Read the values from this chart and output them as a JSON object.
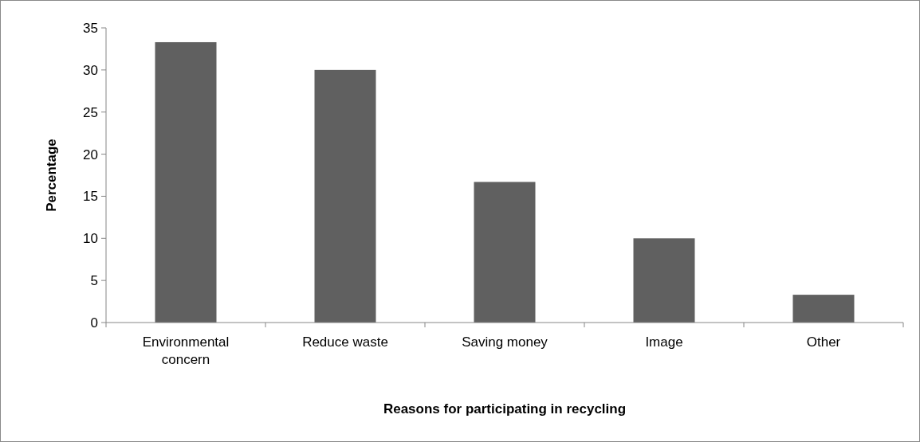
{
  "chart_data": {
    "type": "bar",
    "xlabel": "Reasons for participating in recycling",
    "ylabel": "Percentage",
    "categories": [
      "Environmental concern",
      "Reduce waste",
      "Saving money",
      "Image",
      "Other"
    ],
    "values": [
      33.3,
      30,
      16.7,
      10,
      3.3
    ],
    "color": "#606060",
    "ylim": [
      0,
      35
    ],
    "yticks": [
      0,
      5,
      10,
      15,
      20,
      25,
      30,
      35
    ],
    "grid": false
  }
}
